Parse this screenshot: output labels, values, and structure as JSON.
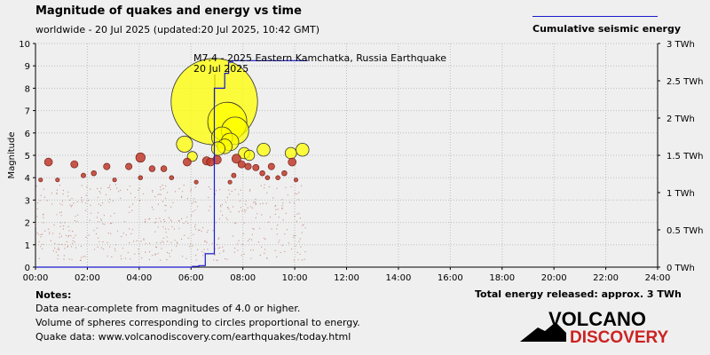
{
  "header": {
    "title": "Magnitude of quakes and energy vs time",
    "subtitle": "worldwide - 20 Jul 2025 (updated:20 Jul 2025, 10:42 GMT)",
    "legend_label": "Cumulative seismic energy"
  },
  "notes": {
    "title": "Notes:",
    "lines": [
      "Data near-complete from magnitudes of 4.0 or higher.",
      "Volume of spheres corresponding to circles proportional to energy.",
      "Quake data: www.volcanodiscovery.com/earthquakes/today.html"
    ]
  },
  "total_energy": "Total energy released: approx. 3 TWh",
  "logo": {
    "line1": "VOLCANO",
    "line2": "DISCOVERY"
  },
  "colors": {
    "background": "#efefef",
    "energy_line": "#1a1acc",
    "quake_small": "#c0392b",
    "quake_large": "#ffff00",
    "logo_red": "#cc2222"
  },
  "chart_data": {
    "type": "scatter",
    "xlabel": "",
    "ylabel": "Magnitude",
    "y2label": "",
    "xlim": [
      0,
      24
    ],
    "ylim": [
      0,
      10
    ],
    "y2lim": [
      0,
      3
    ],
    "x_ticks": [
      "00:00",
      "02:00",
      "04:00",
      "06:00",
      "08:00",
      "10:00",
      "12:00",
      "14:00",
      "16:00",
      "18:00",
      "20:00",
      "22:00",
      "24:00"
    ],
    "y_ticks": [
      "0",
      "1",
      "2",
      "3",
      "4",
      "5",
      "6",
      "7",
      "8",
      "9",
      "10"
    ],
    "y2_ticks": [
      "0 TWh",
      "0.5 TWh",
      "1 TWh",
      "1.5 TWh",
      "2 TWh",
      "2.5 TWh",
      "3 TWh"
    ],
    "annotation": {
      "line1": "M7.4 - 2025 Eastern Kamchatka, Russia Earthquake",
      "line2": "20 Jul 2025"
    },
    "quakes": [
      {
        "t": 0.5,
        "m": 4.7
      },
      {
        "t": 0.2,
        "m": 3.9
      },
      {
        "t": 0.85,
        "m": 3.9
      },
      {
        "t": 1.5,
        "m": 4.6
      },
      {
        "t": 1.85,
        "m": 4.1
      },
      {
        "t": 2.25,
        "m": 4.2
      },
      {
        "t": 2.75,
        "m": 4.5
      },
      {
        "t": 3.05,
        "m": 3.9
      },
      {
        "t": 3.6,
        "m": 4.5
      },
      {
        "t": 4.05,
        "m": 4.9
      },
      {
        "t": 4.05,
        "m": 4.0
      },
      {
        "t": 4.5,
        "m": 4.4
      },
      {
        "t": 4.95,
        "m": 4.4
      },
      {
        "t": 5.25,
        "m": 4.0
      },
      {
        "t": 5.85,
        "m": 4.7
      },
      {
        "t": 5.75,
        "m": 5.5
      },
      {
        "t": 6.05,
        "m": 4.95
      },
      {
        "t": 6.2,
        "m": 3.8
      },
      {
        "t": 6.6,
        "m": 4.75
      },
      {
        "t": 6.75,
        "m": 4.7
      },
      {
        "t": 6.9,
        "m": 7.4
      },
      {
        "t": 7.0,
        "m": 4.8
      },
      {
        "t": 7.05,
        "m": 5.3
      },
      {
        "t": 7.2,
        "m": 5.8
      },
      {
        "t": 7.3,
        "m": 5.4
      },
      {
        "t": 7.4,
        "m": 6.5
      },
      {
        "t": 7.5,
        "m": 5.6
      },
      {
        "t": 7.7,
        "m": 6.1
      },
      {
        "t": 7.5,
        "m": 3.8
      },
      {
        "t": 7.65,
        "m": 4.1
      },
      {
        "t": 7.75,
        "m": 4.85
      },
      {
        "t": 7.95,
        "m": 4.6
      },
      {
        "t": 8.05,
        "m": 5.1
      },
      {
        "t": 8.2,
        "m": 4.5
      },
      {
        "t": 8.25,
        "m": 5.0
      },
      {
        "t": 8.5,
        "m": 4.45
      },
      {
        "t": 8.75,
        "m": 4.2
      },
      {
        "t": 8.8,
        "m": 5.25
      },
      {
        "t": 8.95,
        "m": 4.0
      },
      {
        "t": 9.1,
        "m": 4.5
      },
      {
        "t": 9.35,
        "m": 4.0
      },
      {
        "t": 9.6,
        "m": 4.2
      },
      {
        "t": 9.85,
        "m": 5.1
      },
      {
        "t": 9.9,
        "m": 4.7
      },
      {
        "t": 10.05,
        "m": 3.9
      },
      {
        "t": 10.3,
        "m": 5.25
      }
    ],
    "energy": {
      "t": [
        0,
        5.8,
        6.05,
        6.3,
        6.5,
        6.55,
        6.85,
        6.9,
        7.15,
        7.3,
        7.45,
        7.6,
        7.75,
        10.5
      ],
      "twh": [
        0,
        0,
        0.01,
        0.02,
        0.02,
        0.18,
        0.18,
        2.4,
        2.4,
        2.6,
        2.75,
        2.77,
        2.77,
        2.77
      ]
    }
  }
}
